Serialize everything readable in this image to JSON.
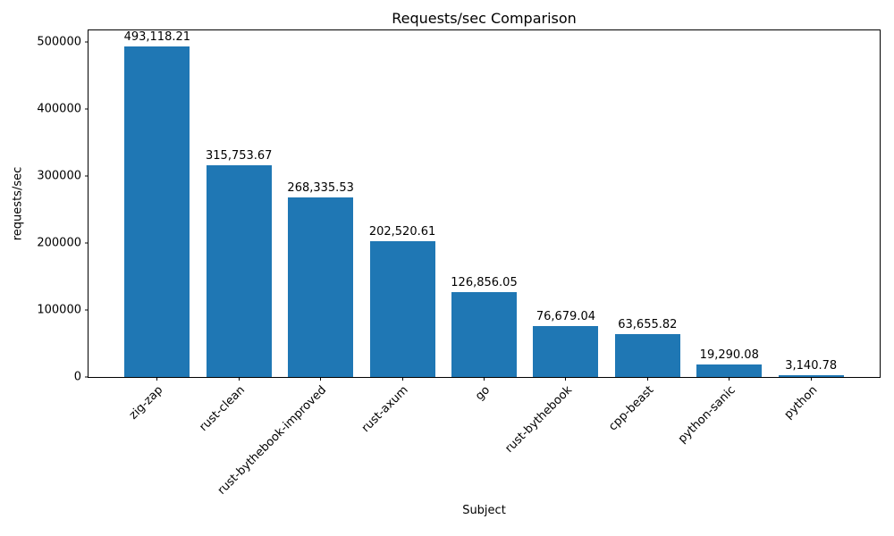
{
  "chart_data": {
    "type": "bar",
    "title": "Requests/sec Comparison",
    "xlabel": "Subject",
    "ylabel": "requests/sec",
    "categories": [
      "zig-zap",
      "rust-clean",
      "rust-bythebook-improved",
      "rust-axum",
      "go",
      "rust-bythebook",
      "cpp-beast",
      "python-sanic",
      "python"
    ],
    "values": [
      493118.21,
      315753.67,
      268335.53,
      202520.61,
      126856.05,
      76679.04,
      63655.82,
      19290.08,
      3140.78
    ],
    "value_labels": [
      "493,118.21",
      "315,753.67",
      "268,335.53",
      "202,520.61",
      "126,856.05",
      "76,679.04",
      "63,655.82",
      "19,290.08",
      "3,140.78"
    ],
    "yticks": [
      0,
      100000,
      200000,
      300000,
      400000,
      500000
    ],
    "ytick_labels": [
      "0",
      "100000",
      "200000",
      "300000",
      "400000",
      "500000"
    ],
    "ylim": [
      0,
      517774
    ],
    "bar_color": "#1f77b4",
    "bar_width_fraction": 0.8,
    "x_tick_rotation_deg": 45,
    "grid": false,
    "legend": null
  }
}
